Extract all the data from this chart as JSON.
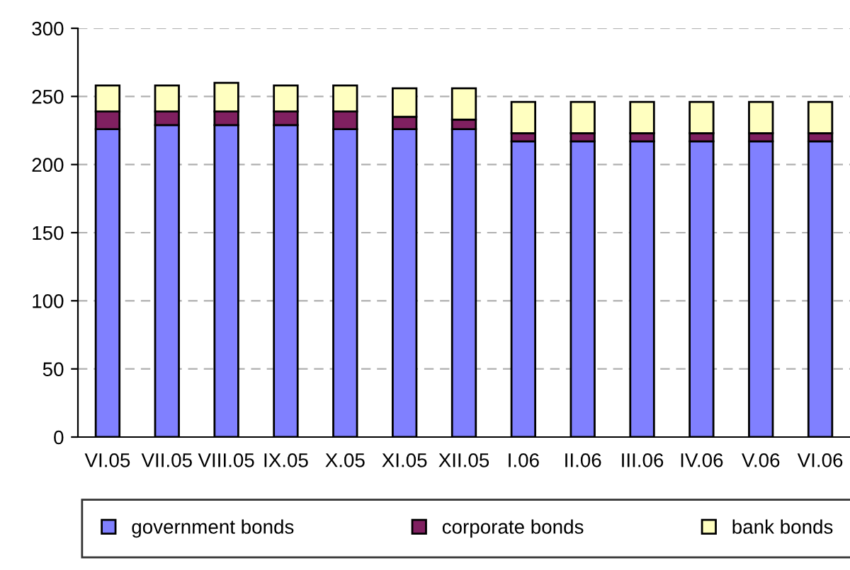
{
  "chart_data": {
    "type": "bar",
    "stacked": true,
    "categories": [
      "VI.05",
      "VII.05",
      "VIII.05",
      "IX.05",
      "X.05",
      "XI.05",
      "XII.05",
      "I.06",
      "II.06",
      "III.06",
      "IV.06",
      "V.06",
      "VI.06"
    ],
    "series": [
      {
        "name": "government bonds",
        "color": "#8080ff",
        "values": [
          226,
          229,
          229,
          229,
          226,
          226,
          226,
          217,
          217,
          217,
          217,
          217,
          217
        ]
      },
      {
        "name": "corporate bonds",
        "color": "#802060",
        "values": [
          13,
          10,
          10,
          10,
          13,
          9,
          7,
          6,
          6,
          6,
          6,
          6,
          6
        ]
      },
      {
        "name": "bank bonds",
        "color": "#ffffc0",
        "values": [
          19,
          19,
          21,
          19,
          19,
          21,
          23,
          23,
          23,
          23,
          23,
          23,
          23
        ]
      }
    ],
    "ylim": [
      0,
      300
    ],
    "yticks": [
      0,
      50,
      100,
      150,
      200,
      250,
      300
    ],
    "grid": "y",
    "legend": "bottom"
  }
}
